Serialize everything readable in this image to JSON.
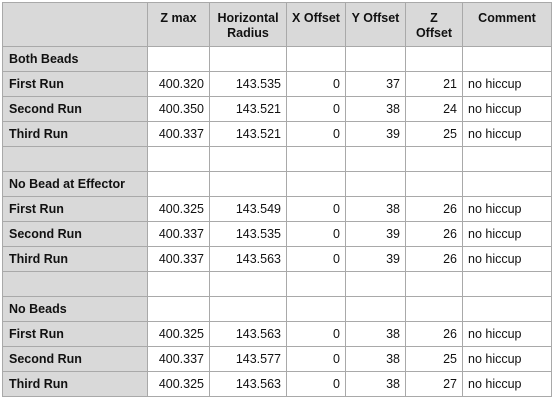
{
  "table": {
    "columns": [
      "",
      "Z max",
      "Horizontal Radius",
      "X Offset",
      "Y Offset",
      "Z Offset",
      "Comment"
    ],
    "rows": [
      {
        "type": "section",
        "label": "Both Beads"
      },
      {
        "type": "data",
        "label": "First Run",
        "z_max": "400.320",
        "horizontal_radius": "143.535",
        "x_offset": "0",
        "y_offset": "37",
        "z_offset": "21",
        "comment": "no hiccup"
      },
      {
        "type": "data",
        "label": "Second Run",
        "z_max": "400.350",
        "horizontal_radius": "143.521",
        "x_offset": "0",
        "y_offset": "38",
        "z_offset": "24",
        "comment": "no hiccup"
      },
      {
        "type": "data",
        "label": "Third Run",
        "z_max": "400.337",
        "horizontal_radius": "143.521",
        "x_offset": "0",
        "y_offset": "39",
        "z_offset": "25",
        "comment": "no hiccup"
      },
      {
        "type": "blank"
      },
      {
        "type": "section",
        "label": "No Bead at Effector"
      },
      {
        "type": "data",
        "label": "First Run",
        "z_max": "400.325",
        "horizontal_radius": "143.549",
        "x_offset": "0",
        "y_offset": "38",
        "z_offset": "26",
        "comment": "no hiccup"
      },
      {
        "type": "data",
        "label": "Second Run",
        "z_max": "400.337",
        "horizontal_radius": "143.535",
        "x_offset": "0",
        "y_offset": "39",
        "z_offset": "26",
        "comment": "no hiccup"
      },
      {
        "type": "data",
        "label": "Third Run",
        "z_max": "400.337",
        "horizontal_radius": "143.563",
        "x_offset": "0",
        "y_offset": "39",
        "z_offset": "26",
        "comment": "no hiccup"
      },
      {
        "type": "blank"
      },
      {
        "type": "section",
        "label": "No Beads"
      },
      {
        "type": "data",
        "label": "First Run",
        "z_max": "400.325",
        "horizontal_radius": "143.563",
        "x_offset": "0",
        "y_offset": "38",
        "z_offset": "26",
        "comment": "no hiccup"
      },
      {
        "type": "data",
        "label": "Second Run",
        "z_max": "400.337",
        "horizontal_radius": "143.577",
        "x_offset": "0",
        "y_offset": "38",
        "z_offset": "25",
        "comment": "no hiccup"
      },
      {
        "type": "data",
        "label": "Third Run",
        "z_max": "400.325",
        "horizontal_radius": "143.563",
        "x_offset": "0",
        "y_offset": "38",
        "z_offset": "27",
        "comment": "no hiccup"
      }
    ]
  }
}
